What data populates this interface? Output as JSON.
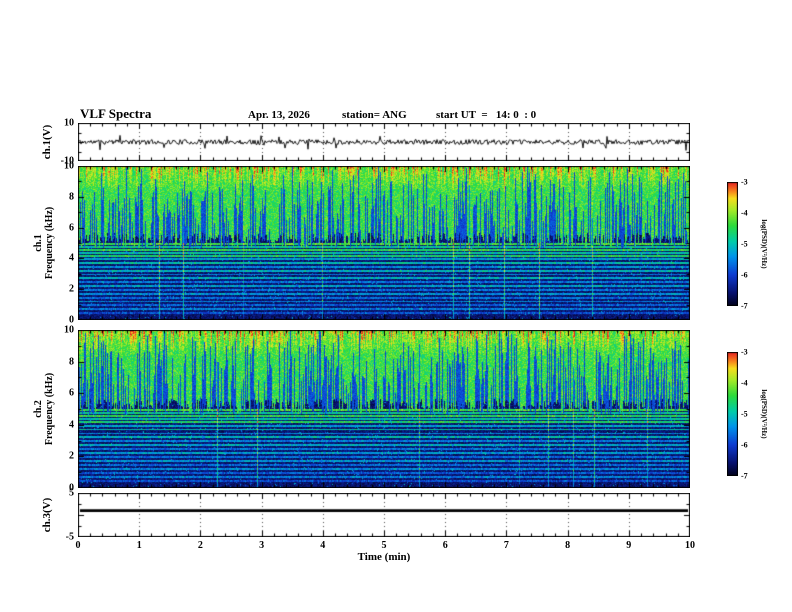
{
  "figure": {
    "title": "VLF Spectra",
    "date": "Apr. 13, 2026",
    "station": "station= ANG",
    "start_ut": "start UT  =   14: 0  : 0"
  },
  "time_axis": {
    "label": "Time (min)",
    "min": 0,
    "max": 10,
    "major_ticks": [
      0,
      1,
      2,
      3,
      4,
      5,
      6,
      7,
      8,
      9,
      10
    ],
    "minor_step": 0.2
  },
  "colorbar": {
    "label": "log(PSD)(V²/Hz)",
    "vmin": -7,
    "vmax": -3,
    "ticks": [
      -3,
      -4,
      -5,
      -6,
      -7
    ],
    "colormap": "rainbow"
  },
  "chart_data": [
    {
      "type": "line",
      "name": "ch1-waveform",
      "ylabel": "ch.1(V)",
      "xlim": [
        0,
        10
      ],
      "ylim": [
        -10,
        10
      ],
      "ytick_values": [
        10,
        -10
      ],
      "description": "Raw ch.1 voltage vs time: continuous broadband noise centred on 0 V, roughly ±2 V, with sporadic impulsive spikes.",
      "mean_v": 0,
      "noise_v": 1.3,
      "spike_prob": 0.04,
      "spike_v": 4.5,
      "seed": 11
    },
    {
      "type": "heatmap",
      "name": "ch1-spectrogram",
      "ylabel_line1": "ch.1",
      "ylabel_line2": "Frequency (kHz)",
      "xlim": [
        0,
        10
      ],
      "ylim": [
        0,
        10
      ],
      "ytick_values": [
        0,
        2,
        4,
        6,
        8,
        10
      ],
      "value_range": [
        -7,
        -3
      ],
      "seed": 21,
      "background_level": -6.6,
      "upper_band": {
        "f_low": 5.15,
        "edge_jitter_khz": 0.5,
        "level": -4.4,
        "yellow_top_khz": 8.3
      },
      "sferic_streaks": {
        "density": 0.5,
        "min_depth_khz": 1.0,
        "max_depth_khz": 4.5,
        "level": -5.9
      },
      "interference": {
        "prob": 0.012,
        "boost": 1.1
      },
      "speckle_prob": 0.03,
      "spectral_lines": [
        {
          "f": 4.95,
          "level": -4.35
        },
        {
          "f": 4.75,
          "level": -4.85
        },
        {
          "f": 4.55,
          "level": -4.5
        },
        {
          "f": 4.35,
          "level": -4.95
        },
        {
          "f": 4.15,
          "level": -4.6
        },
        {
          "f": 3.95,
          "level": -5.25
        },
        {
          "f": 3.7,
          "level": -5.0
        },
        {
          "f": 3.45,
          "level": -5.45
        },
        {
          "f": 3.2,
          "level": -5.1
        },
        {
          "f": 2.95,
          "level": -5.5
        },
        {
          "f": 2.7,
          "level": -5.2
        },
        {
          "f": 2.45,
          "level": -5.6
        },
        {
          "f": 2.2,
          "level": -5.3
        },
        {
          "f": 1.95,
          "level": -5.65
        },
        {
          "f": 1.7,
          "level": -5.4
        },
        {
          "f": 1.45,
          "level": -5.7
        },
        {
          "f": 1.2,
          "level": -5.5
        },
        {
          "f": 0.95,
          "level": -5.8
        },
        {
          "f": 0.7,
          "level": -5.55
        },
        {
          "f": 0.45,
          "level": -5.9
        }
      ],
      "description": "VLF spectrogram ch.1, 0-10 kHz over 10 min: bright green band above ~5 kHz with yellow/orange patches toward 10 kHz and dark-blue sferic streaks; dark navy background below ~5 kHz crossed by many narrow horizontal emission lines."
    },
    {
      "type": "heatmap",
      "name": "ch2-spectrogram",
      "ylabel_line1": "ch.2",
      "ylabel_line2": "Frequency (kHz)",
      "xlim": [
        0,
        10
      ],
      "ylim": [
        0,
        10
      ],
      "ytick_values": [
        0,
        2,
        4,
        6,
        8,
        10
      ],
      "value_range": [
        -7,
        -3
      ],
      "seed": 22,
      "background_level": -6.6,
      "upper_band": {
        "f_low": 5.15,
        "edge_jitter_khz": 0.5,
        "level": -4.4,
        "yellow_top_khz": 8.3
      },
      "sferic_streaks": {
        "density": 0.5,
        "min_depth_khz": 1.0,
        "max_depth_khz": 4.5,
        "level": -5.9
      },
      "interference": {
        "prob": 0.012,
        "boost": 1.1
      },
      "speckle_prob": 0.03,
      "spectral_lines": [
        {
          "f": 4.95,
          "level": -4.35
        },
        {
          "f": 4.75,
          "level": -4.85
        },
        {
          "f": 4.55,
          "level": -4.5
        },
        {
          "f": 4.35,
          "level": -4.95
        },
        {
          "f": 4.15,
          "level": -4.6
        },
        {
          "f": 3.95,
          "level": -5.25
        },
        {
          "f": 3.7,
          "level": -5.0
        },
        {
          "f": 3.45,
          "level": -5.45
        },
        {
          "f": 3.2,
          "level": -5.1
        },
        {
          "f": 2.95,
          "level": -5.5
        },
        {
          "f": 2.7,
          "level": -5.2
        },
        {
          "f": 2.45,
          "level": -5.6
        },
        {
          "f": 2.2,
          "level": -5.3
        },
        {
          "f": 1.95,
          "level": -5.65
        },
        {
          "f": 1.7,
          "level": -5.4
        },
        {
          "f": 1.45,
          "level": -5.7
        },
        {
          "f": 1.2,
          "level": -5.5
        },
        {
          "f": 0.95,
          "level": -5.8
        },
        {
          "f": 0.7,
          "level": -5.55
        },
        {
          "f": 0.45,
          "level": -5.9
        }
      ],
      "description": "VLF spectrogram ch.2, same structure as ch.1: green band above ~5 kHz with sferic streaks, dark background with horizontal emission lines below."
    },
    {
      "type": "line",
      "name": "ch3-waveform",
      "ylabel": "ch.3(V)",
      "xlim": [
        0,
        10
      ],
      "ylim": [
        -5,
        5
      ],
      "ytick_values": [
        5,
        -5
      ],
      "description": "Raw ch.3 voltage vs time: flat constant level near +1 V for the whole 10 minutes (no signal).",
      "value_v": 1.0,
      "seed": 14
    }
  ]
}
